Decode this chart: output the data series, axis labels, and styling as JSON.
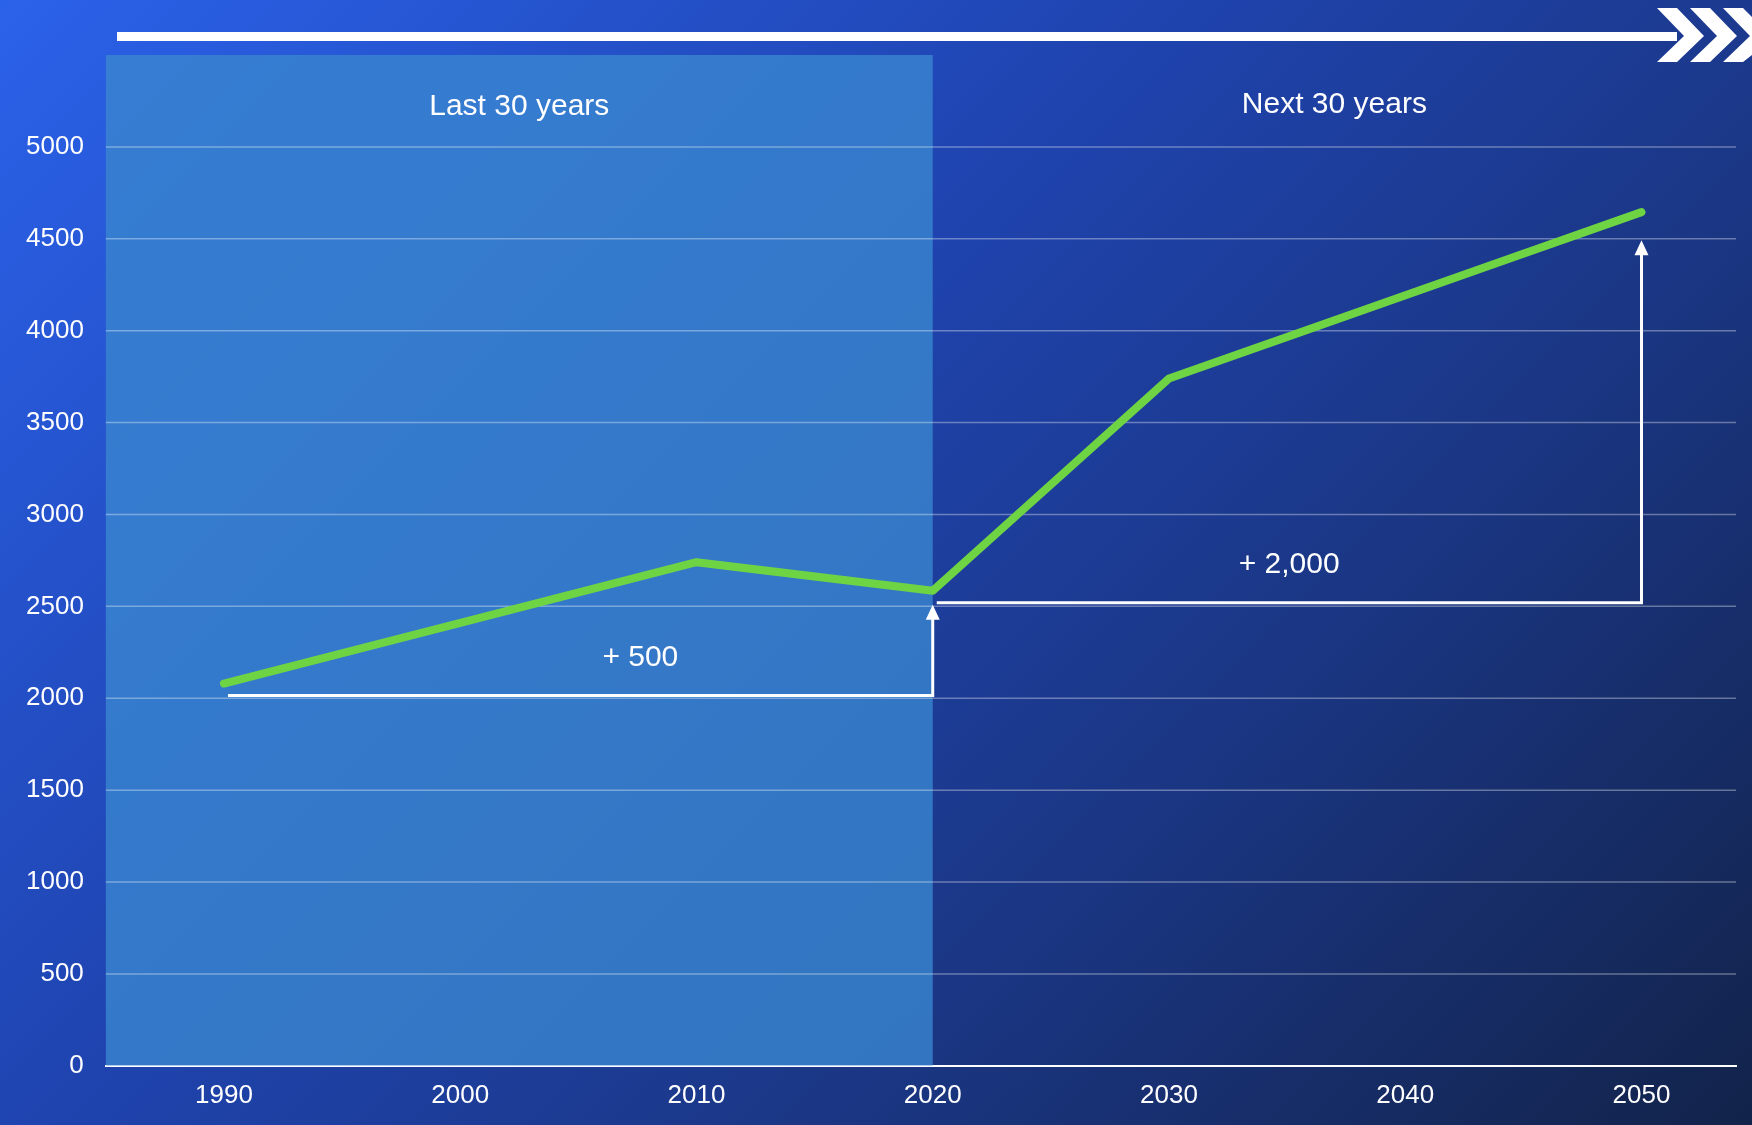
{
  "chart_data": {
    "type": "line",
    "x": [
      1990,
      2010,
      2020,
      2030,
      2050
    ],
    "series": [
      {
        "color": "#6fd444",
        "values": [
          2080,
          2740,
          2585,
          3740,
          4645
        ]
      }
    ],
    "xlim": [
      1985,
      2054
    ],
    "xticks": [
      1990,
      2000,
      2010,
      2020,
      2030,
      2040,
      2050
    ],
    "ylim": [
      0,
      5500
    ],
    "yticks": [
      0,
      500,
      1000,
      1500,
      2000,
      2500,
      3000,
      3500,
      4000,
      4500,
      5000
    ],
    "grid": "y",
    "legend": false,
    "marker": "none",
    "line_style": "solid",
    "bands": [
      {
        "axis": "x",
        "from": 1985,
        "to": 2020,
        "label": "Last 30 years",
        "color": "#3a86d0"
      }
    ],
    "annotations": [
      "+ 500",
      "+ 2,000",
      "Next 30 years"
    ]
  }
}
